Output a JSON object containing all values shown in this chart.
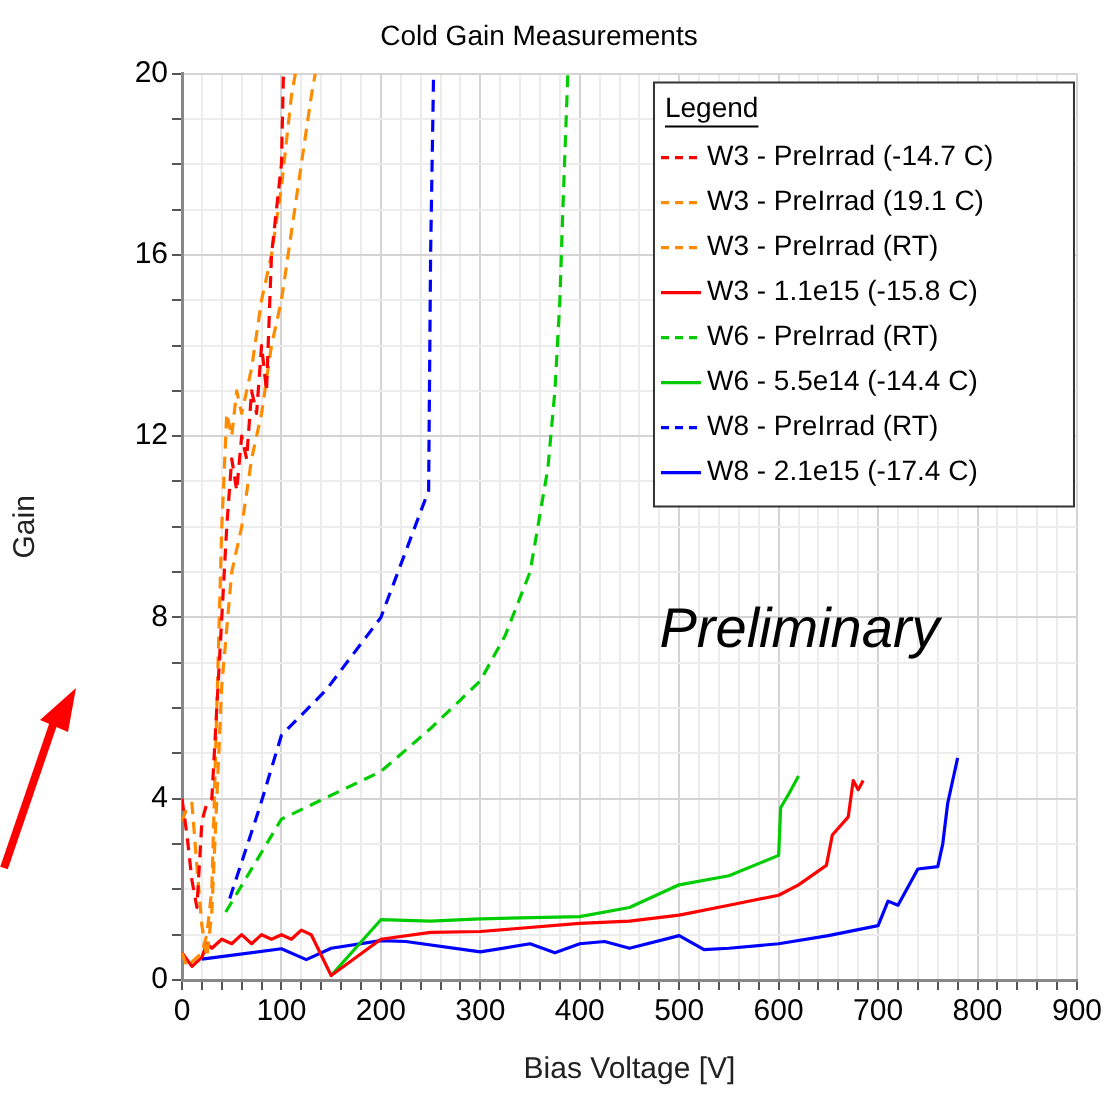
{
  "chart_data": {
    "type": "line",
    "title": "Cold Gain Measurements",
    "xlabel": "Bias Voltage [V]",
    "ylabel": "Gain",
    "legend_title": "Legend",
    "annotations": [
      "Preliminary"
    ],
    "xlim": [
      0,
      900
    ],
    "ylim": [
      0,
      20
    ],
    "xticks": [
      0,
      {
        "value": 20,
        "label": null
      },
      {
        "value": 40,
        "label": null
      },
      {
        "value": 60,
        "label": null
      },
      {
        "value": 80,
        "label": null
      },
      100,
      {
        "value": 120,
        "label": null
      },
      {
        "value": 140,
        "label": null
      },
      {
        "value": 160,
        "label": null
      },
      {
        "value": 180,
        "label": null
      },
      200,
      {
        "value": 220,
        "label": null
      },
      {
        "value": 240,
        "label": null
      },
      {
        "value": 260,
        "label": null
      },
      {
        "value": 280,
        "label": null
      },
      300,
      {
        "value": 320,
        "label": null
      },
      {
        "value": 340,
        "label": null
      },
      {
        "value": 360,
        "label": null
      },
      {
        "value": 380,
        "label": null
      },
      400,
      {
        "value": 420,
        "label": null
      },
      {
        "value": 440,
        "label": null
      },
      {
        "value": 460,
        "label": null
      },
      {
        "value": 480,
        "label": null
      },
      500,
      {
        "value": 520,
        "label": null
      },
      {
        "value": 540,
        "label": null
      },
      {
        "value": 560,
        "label": null
      },
      {
        "value": 580,
        "label": null
      },
      600,
      {
        "value": 620,
        "label": null
      },
      {
        "value": 640,
        "label": null
      },
      {
        "value": 660,
        "label": null
      },
      {
        "value": 680,
        "label": null
      },
      700,
      {
        "value": 720,
        "label": null
      },
      {
        "value": 740,
        "label": null
      },
      {
        "value": 760,
        "label": null
      },
      {
        "value": 780,
        "label": null
      },
      800,
      {
        "value": 820,
        "label": null
      },
      {
        "value": 840,
        "label": null
      },
      {
        "value": 860,
        "label": null
      },
      {
        "value": 880,
        "label": null
      },
      900
    ],
    "yticks": [
      0,
      {
        "value": 1,
        "label": null
      },
      {
        "value": 2,
        "label": null
      },
      {
        "value": 3,
        "label": null
      },
      4,
      {
        "value": 5,
        "label": null
      },
      {
        "value": 6,
        "label": null
      },
      {
        "value": 7,
        "label": null
      },
      8,
      {
        "value": 9,
        "label": null
      },
      {
        "value": 10,
        "label": null
      },
      {
        "value": 11,
        "label": null
      },
      12,
      {
        "value": 13,
        "label": null
      },
      {
        "value": 14,
        "label": null
      },
      {
        "value": 15,
        "label": null
      },
      16,
      {
        "value": 17,
        "label": null
      },
      {
        "value": 18,
        "label": null
      },
      {
        "value": 19,
        "label": null
      },
      20
    ],
    "grid": true,
    "legend": "top right",
    "marker": "none",
    "series": [
      {
        "name": "W3 - PreIrrad (-14.7 C)",
        "color": "#ff0000",
        "line_style": "dashed",
        "x": [
          0,
          5,
          10,
          15,
          20,
          25,
          30,
          35,
          40,
          45,
          50,
          55,
          60,
          65,
          70,
          75,
          80,
          85,
          90,
          95,
          100,
          102
        ],
        "values": [
          4.0,
          3.2,
          2.2,
          1.6,
          3.5,
          3.9,
          4.0,
          6,
          8,
          10,
          11.5,
          10.8,
          12,
          11.5,
          13,
          12.5,
          14,
          13,
          16,
          17,
          18,
          20
        ]
      },
      {
        "name": "W3 - PreIrrad (19.1 C)",
        "color": "#ff8c00",
        "line_style": "dashed",
        "x": [
          0,
          5,
          10,
          20,
          25,
          30,
          35,
          40,
          45,
          50,
          55,
          60,
          70,
          80,
          90,
          100,
          110,
          114
        ],
        "values": [
          0.6,
          0.3,
          0.4,
          0.6,
          1,
          2,
          6,
          10,
          12.5,
          12,
          13,
          12.5,
          13.5,
          15,
          16,
          17.5,
          19.5,
          20
        ]
      },
      {
        "name": "W3 - PreIrrad (RT)",
        "color": "#ff8c00",
        "line_style": "dashed",
        "x": [
          0,
          5,
          10,
          15,
          20,
          25,
          30,
          35,
          40,
          50,
          60,
          70,
          80,
          90,
          100,
          110,
          120,
          130,
          134
        ],
        "values": [
          3.5,
          3.8,
          3.9,
          2.5,
          1.2,
          0.5,
          1.5,
          4,
          6.5,
          9,
          10,
          11.5,
          12.5,
          14,
          15,
          16.5,
          18,
          19.5,
          20
        ]
      },
      {
        "name": "W3 - 1.1e15 (-15.8 C)",
        "color": "#ff0000",
        "line_style": "solid",
        "x": [
          0,
          10,
          20,
          25,
          30,
          40,
          50,
          60,
          70,
          80,
          90,
          100,
          110,
          120,
          130,
          150,
          200,
          250,
          300,
          400,
          450,
          500,
          550,
          600,
          620,
          648,
          654,
          670,
          675,
          680,
          685
        ],
        "values": [
          0.6,
          0.3,
          0.5,
          0.8,
          0.7,
          0.9,
          0.8,
          1.0,
          0.8,
          1.0,
          0.9,
          1.0,
          0.9,
          1.1,
          1.0,
          0.1,
          0.9,
          1.05,
          1.07,
          1.25,
          1.3,
          1.43,
          1.65,
          1.87,
          2.1,
          2.53,
          3.2,
          3.6,
          4.4,
          4.2,
          4.4
        ]
      },
      {
        "name": "W6 - PreIrrad (RT)",
        "color": "#00cc00",
        "line_style": "dashed",
        "x": [
          44,
          100,
          200,
          250,
          300,
          325,
          350,
          368,
          375,
          380,
          383,
          388
        ],
        "values": [
          1.5,
          3.55,
          4.6,
          5.55,
          6.6,
          7.6,
          9.0,
          11.3,
          13,
          15,
          17,
          20
        ]
      },
      {
        "name": "W6 - 5.5e14 (-14.4 C)",
        "color": "#00cc00",
        "line_style": "solid",
        "x": [
          150,
          200,
          250,
          300,
          400,
          450,
          500,
          550,
          600,
          602,
          610,
          620
        ],
        "values": [
          0.1,
          1.33,
          1.3,
          1.35,
          1.4,
          1.6,
          2.1,
          2.3,
          2.75,
          3.8,
          4.1,
          4.5
        ]
      },
      {
        "name": "W8 - PreIrrad (RT)",
        "color": "#0000ff",
        "line_style": "dashed",
        "x": [
          48,
          78,
          100,
          145,
          200,
          248,
          250,
          253
        ],
        "values": [
          1.8,
          3.8,
          5.4,
          6.4,
          8.0,
          10.8,
          16,
          20
        ]
      },
      {
        "name": "W8 - 2.1e15 (-17.4 C)",
        "color": "#0000ff",
        "line_style": "solid",
        "x": [
          20,
          100,
          125,
          150,
          200,
          225,
          300,
          350,
          375,
          400,
          425,
          450,
          500,
          525,
          550,
          600,
          650,
          700,
          710,
          720,
          740,
          760,
          765,
          770,
          780
        ],
        "values": [
          0.46,
          0.69,
          0.45,
          0.7,
          0.87,
          0.85,
          0.62,
          0.8,
          0.6,
          0.8,
          0.85,
          0.7,
          0.98,
          0.67,
          0.7,
          0.8,
          0.98,
          1.2,
          1.74,
          1.65,
          2.45,
          2.5,
          3.0,
          3.9,
          4.9
        ]
      }
    ]
  }
}
